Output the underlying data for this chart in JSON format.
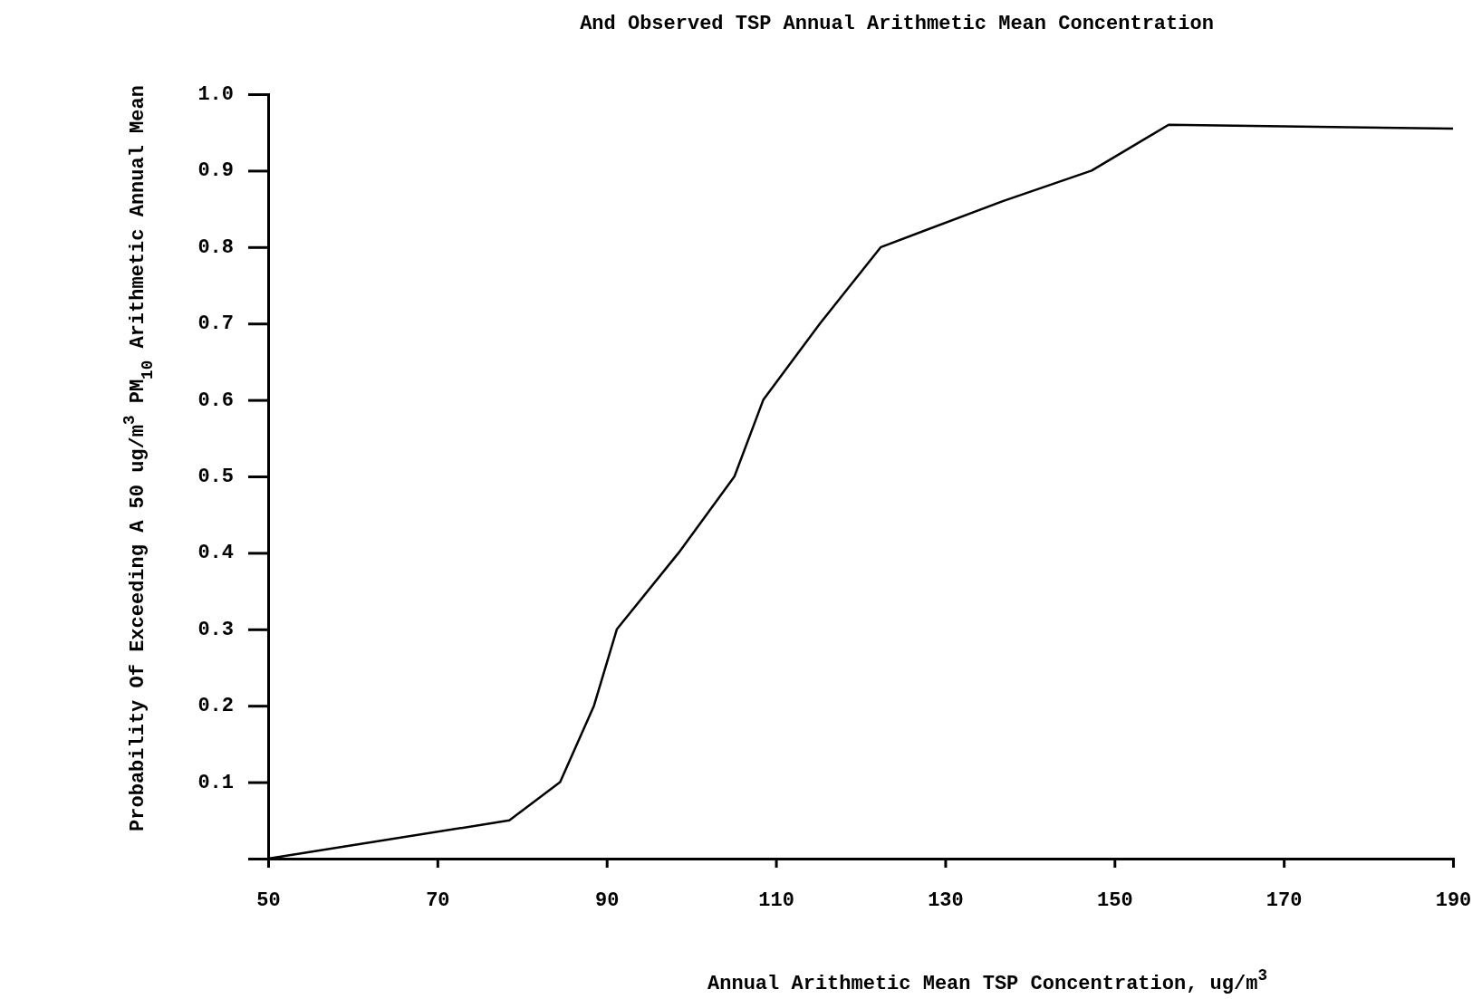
{
  "chart_data": {
    "type": "line",
    "title": "And Observed TSP Annual Arithmetic Mean Concentration",
    "xlabel": "Annual Arithmetic Mean TSP Concentration, ug/m$^{3}$",
    "ylabel": "Probability Of Exceeding A 50 ug/m$^{3}$ PM$_{10}$ Arithmetic Annual Mean",
    "x": [
      50,
      78.5,
      84.5,
      88.5,
      91.2,
      98.5,
      105.1,
      108.5,
      115.2,
      122.4,
      136.8,
      147.3,
      156.4,
      190
    ],
    "series": [
      {
        "color": "#000000",
        "values": [
          0,
          0.05,
          0.1,
          0.2,
          0.3,
          0.4,
          0.5,
          0.6,
          0.7,
          0.8,
          0.86,
          0.9,
          0.96,
          0.955
        ]
      }
    ],
    "xlim": [
      50,
      190
    ],
    "xticks": [
      50,
      70,
      90,
      110,
      130,
      150,
      170,
      190
    ],
    "ylim": [
      0,
      1
    ],
    "yticks": [
      0.1,
      0.2,
      0.3,
      0.4,
      0.5,
      0.6,
      0.7,
      0.8,
      0.9,
      {
        "value": 1,
        "label": "1.0"
      }
    ],
    "marker": "none",
    "line_style": "solid"
  }
}
